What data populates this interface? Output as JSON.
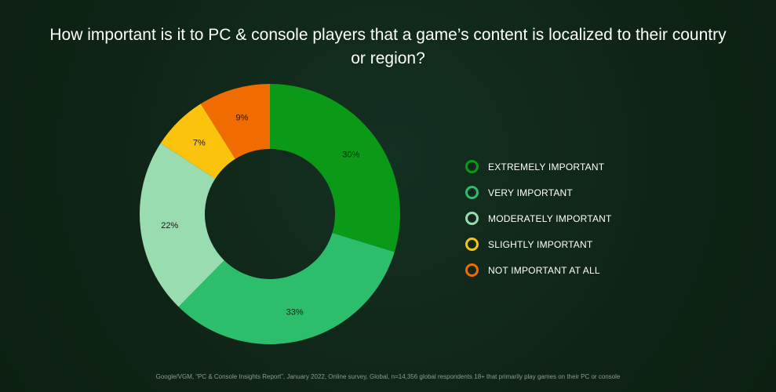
{
  "title": "How important is it to PC & console players that a game’s content is localized to their country or region?",
  "footnote": "Google/VGM, “PC & Console Insights Report”, January 2022, Online survey, Global, n=14,356 global respondents 18+ that primarily play games on their PC or console",
  "chart_data": {
    "type": "pie",
    "donut": true,
    "title": "How important is it to PC & console players that a game’s content is localized to their country or region?",
    "categories": [
      "EXTREMELY IMPORTANT",
      "VERY IMPORTANT",
      "MODERATELY IMPORTANT",
      "SLIGHTLY IMPORTANT",
      "NOT IMPORTANT AT ALL"
    ],
    "values": [
      30,
      33,
      22,
      7,
      9
    ],
    "labels": [
      "30%",
      "33%",
      "22%",
      "7%",
      "9%"
    ],
    "colors": [
      "#0b9a17",
      "#2dbe6c",
      "#98dcb0",
      "#fbc30b",
      "#f06b00"
    ],
    "legend_position": "right"
  },
  "legend": [
    {
      "label": "EXTREMELY IMPORTANT",
      "color": "#0b9a17"
    },
    {
      "label": "VERY IMPORTANT",
      "color": "#2dbe6c"
    },
    {
      "label": "MODERATELY IMPORTANT",
      "color": "#98dcb0"
    },
    {
      "label": "SLIGHTLY IMPORTANT",
      "color": "#fbc30b"
    },
    {
      "label": "NOT IMPORTANT AT ALL",
      "color": "#f06b00"
    }
  ]
}
